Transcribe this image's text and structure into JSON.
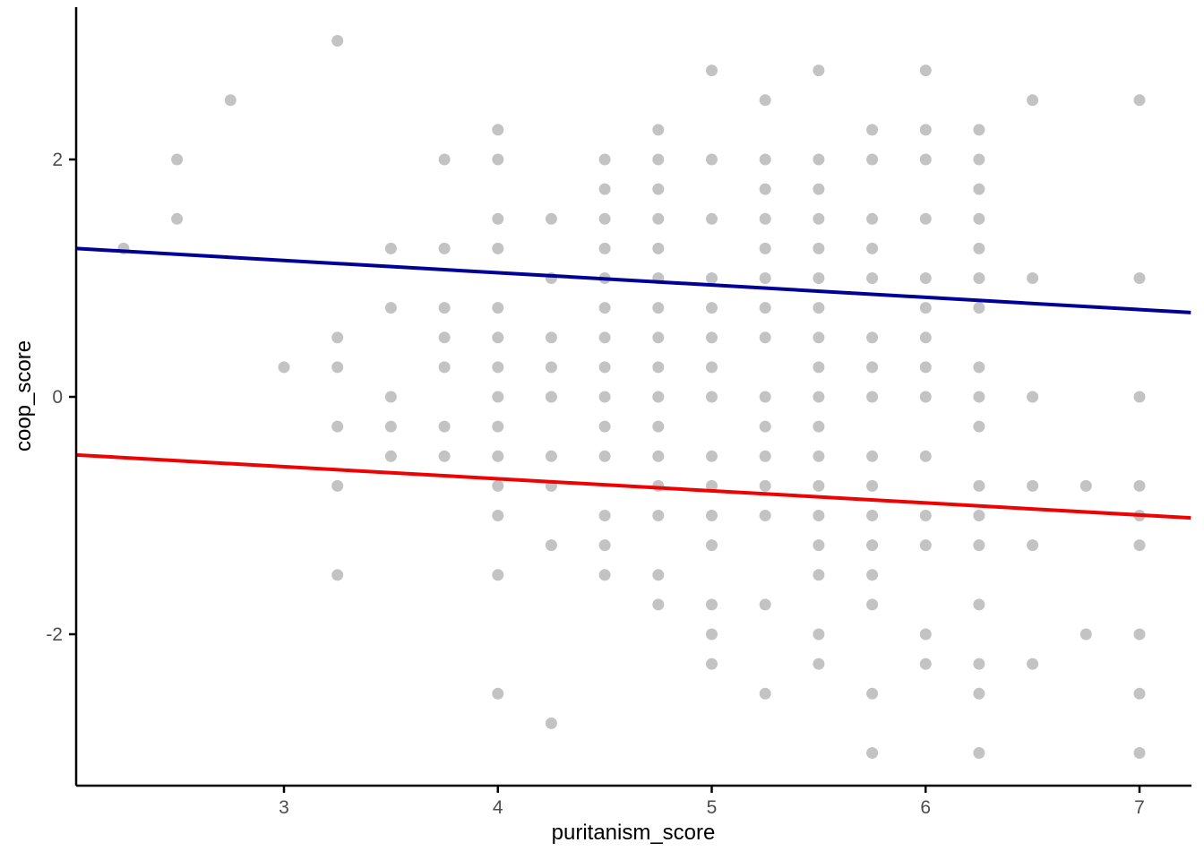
{
  "chart_data": {
    "type": "scatter",
    "title": "",
    "xlabel": "puritanism_score",
    "ylabel": "coop_score",
    "x_ticks": [
      3,
      4,
      5,
      6,
      7
    ],
    "y_ticks": [
      -2,
      0,
      2
    ],
    "xlim": [
      2.03,
      7.24
    ],
    "ylim": [
      -3.28,
      3.28
    ],
    "grid": false,
    "legend": "none",
    "point_color": "#c3c3c3",
    "point_radius_px": 6.5,
    "axis_color": "#000000",
    "tick_label_color": "#4d4d4d",
    "points": [
      [
        3.25,
        3
      ],
      [
        5,
        2.75
      ],
      [
        5.5,
        2.75
      ],
      [
        6,
        2.75
      ],
      [
        2.75,
        2.5
      ],
      [
        5.25,
        2.5
      ],
      [
        6.5,
        2.5
      ],
      [
        7,
        2.5
      ],
      [
        4,
        2.25
      ],
      [
        4.75,
        2.25
      ],
      [
        5.75,
        2.25
      ],
      [
        6,
        2.25
      ],
      [
        6.25,
        2.25
      ],
      [
        2.5,
        2
      ],
      [
        3.75,
        2
      ],
      [
        4,
        2
      ],
      [
        4.5,
        2
      ],
      [
        4.75,
        2
      ],
      [
        5,
        2
      ],
      [
        5.25,
        2
      ],
      [
        5.5,
        2
      ],
      [
        5.75,
        2
      ],
      [
        6,
        2
      ],
      [
        6.25,
        2
      ],
      [
        4.5,
        1.75
      ],
      [
        4.75,
        1.75
      ],
      [
        5.25,
        1.75
      ],
      [
        5.5,
        1.75
      ],
      [
        6.25,
        1.75
      ],
      [
        2.5,
        1.5
      ],
      [
        4,
        1.5
      ],
      [
        4.25,
        1.5
      ],
      [
        4.5,
        1.5
      ],
      [
        4.75,
        1.5
      ],
      [
        5,
        1.5
      ],
      [
        5.25,
        1.5
      ],
      [
        5.5,
        1.5
      ],
      [
        5.75,
        1.5
      ],
      [
        6,
        1.5
      ],
      [
        6.25,
        1.5
      ],
      [
        2.25,
        1.25
      ],
      [
        3.5,
        1.25
      ],
      [
        3.75,
        1.25
      ],
      [
        4,
        1.25
      ],
      [
        4.5,
        1.25
      ],
      [
        4.75,
        1.25
      ],
      [
        5.25,
        1.25
      ],
      [
        5.5,
        1.25
      ],
      [
        5.75,
        1.25
      ],
      [
        6.25,
        1.25
      ],
      [
        4.25,
        1
      ],
      [
        4.5,
        1
      ],
      [
        4.75,
        1
      ],
      [
        5,
        1
      ],
      [
        5.25,
        1
      ],
      [
        5.5,
        1
      ],
      [
        5.75,
        1
      ],
      [
        6,
        1
      ],
      [
        6.25,
        1
      ],
      [
        6.5,
        1
      ],
      [
        7,
        1
      ],
      [
        3.5,
        0.75
      ],
      [
        3.75,
        0.75
      ],
      [
        4,
        0.75
      ],
      [
        4.5,
        0.75
      ],
      [
        4.75,
        0.75
      ],
      [
        5,
        0.75
      ],
      [
        5.25,
        0.75
      ],
      [
        5.5,
        0.75
      ],
      [
        6,
        0.75
      ],
      [
        6.25,
        0.75
      ],
      [
        3.25,
        0.5
      ],
      [
        3.75,
        0.5
      ],
      [
        4,
        0.5
      ],
      [
        4.25,
        0.5
      ],
      [
        4.5,
        0.5
      ],
      [
        4.75,
        0.5
      ],
      [
        5,
        0.5
      ],
      [
        5.25,
        0.5
      ],
      [
        5.5,
        0.5
      ],
      [
        5.75,
        0.5
      ],
      [
        6,
        0.5
      ],
      [
        3,
        0.25
      ],
      [
        3.25,
        0.25
      ],
      [
        3.75,
        0.25
      ],
      [
        4,
        0.25
      ],
      [
        4.25,
        0.25
      ],
      [
        4.5,
        0.25
      ],
      [
        4.75,
        0.25
      ],
      [
        5,
        0.25
      ],
      [
        5.5,
        0.25
      ],
      [
        5.75,
        0.25
      ],
      [
        6,
        0.25
      ],
      [
        6.25,
        0.25
      ],
      [
        3.5,
        0
      ],
      [
        4,
        0
      ],
      [
        4.25,
        0
      ],
      [
        4.5,
        0
      ],
      [
        4.75,
        0
      ],
      [
        5,
        0
      ],
      [
        5.25,
        0
      ],
      [
        5.5,
        0
      ],
      [
        5.75,
        0
      ],
      [
        6,
        0
      ],
      [
        6.25,
        0
      ],
      [
        6.5,
        0
      ],
      [
        7,
        0
      ],
      [
        3.25,
        -0.25
      ],
      [
        3.5,
        -0.25
      ],
      [
        3.75,
        -0.25
      ],
      [
        4,
        -0.25
      ],
      [
        4.5,
        -0.25
      ],
      [
        4.75,
        -0.25
      ],
      [
        5.25,
        -0.25
      ],
      [
        5.5,
        -0.25
      ],
      [
        6.25,
        -0.25
      ],
      [
        3.5,
        -0.5
      ],
      [
        3.75,
        -0.5
      ],
      [
        4,
        -0.5
      ],
      [
        4.25,
        -0.5
      ],
      [
        4.5,
        -0.5
      ],
      [
        4.75,
        -0.5
      ],
      [
        5,
        -0.5
      ],
      [
        5.25,
        -0.5
      ],
      [
        5.5,
        -0.5
      ],
      [
        5.75,
        -0.5
      ],
      [
        6,
        -0.5
      ],
      [
        3.25,
        -0.75
      ],
      [
        4,
        -0.75
      ],
      [
        4.25,
        -0.75
      ],
      [
        4.75,
        -0.75
      ],
      [
        5,
        -0.75
      ],
      [
        5.25,
        -0.75
      ],
      [
        5.5,
        -0.75
      ],
      [
        5.75,
        -0.75
      ],
      [
        6.25,
        -0.75
      ],
      [
        6.5,
        -0.75
      ],
      [
        6.75,
        -0.75
      ],
      [
        7,
        -0.75
      ],
      [
        4,
        -1
      ],
      [
        4.5,
        -1
      ],
      [
        4.75,
        -1
      ],
      [
        5,
        -1
      ],
      [
        5.25,
        -1
      ],
      [
        5.5,
        -1
      ],
      [
        5.75,
        -1
      ],
      [
        6,
        -1
      ],
      [
        6.25,
        -1
      ],
      [
        7,
        -1
      ],
      [
        4.25,
        -1.25
      ],
      [
        4.5,
        -1.25
      ],
      [
        5,
        -1.25
      ],
      [
        5.5,
        -1.25
      ],
      [
        5.75,
        -1.25
      ],
      [
        6,
        -1.25
      ],
      [
        6.25,
        -1.25
      ],
      [
        6.5,
        -1.25
      ],
      [
        7,
        -1.25
      ],
      [
        3.25,
        -1.5
      ],
      [
        4,
        -1.5
      ],
      [
        4.5,
        -1.5
      ],
      [
        4.75,
        -1.5
      ],
      [
        5.5,
        -1.5
      ],
      [
        5.75,
        -1.5
      ],
      [
        4.75,
        -1.75
      ],
      [
        5,
        -1.75
      ],
      [
        5.25,
        -1.75
      ],
      [
        5.75,
        -1.75
      ],
      [
        6.25,
        -1.75
      ],
      [
        5,
        -2
      ],
      [
        5.5,
        -2
      ],
      [
        6,
        -2
      ],
      [
        6.75,
        -2
      ],
      [
        7,
        -2
      ],
      [
        5,
        -2.25
      ],
      [
        5.5,
        -2.25
      ],
      [
        6,
        -2.25
      ],
      [
        6.25,
        -2.25
      ],
      [
        6.5,
        -2.25
      ],
      [
        4,
        -2.5
      ],
      [
        5.25,
        -2.5
      ],
      [
        5.75,
        -2.5
      ],
      [
        6.25,
        -2.5
      ],
      [
        7,
        -2.5
      ],
      [
        4.25,
        -2.75
      ],
      [
        5.75,
        -3
      ],
      [
        6.25,
        -3
      ],
      [
        7,
        -3
      ]
    ],
    "lines": [
      {
        "name": "navy-regression-line",
        "color": "#000099",
        "x1": 2.03,
        "y1": 1.25,
        "x2": 7.24,
        "y2": 0.71
      },
      {
        "name": "red-regression-line",
        "color": "#ee0202",
        "x1": 2.03,
        "y1": -0.49,
        "x2": 7.24,
        "y2": -1.02
      }
    ]
  }
}
